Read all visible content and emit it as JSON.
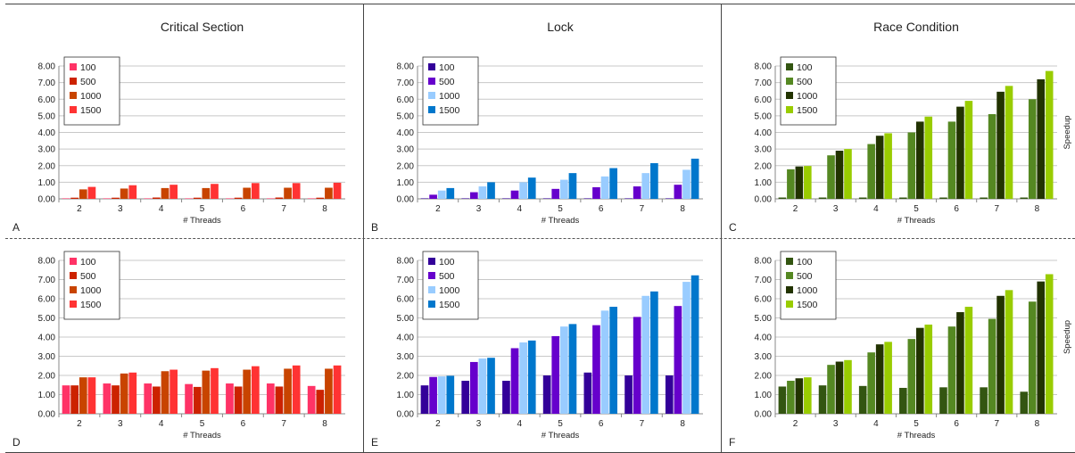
{
  "figure": {
    "columns": [
      "Critical Section",
      "Lock",
      "Race Condition"
    ],
    "series_names": [
      "100",
      "500",
      "1000",
      "1500"
    ],
    "ylabel": "Speedup",
    "xlabel": "# Threads",
    "categories": [
      "2",
      "3",
      "4",
      "5",
      "6",
      "7",
      "8"
    ],
    "ytick_labels": [
      "0.00",
      "1.00",
      "2.00",
      "3.00",
      "4.00",
      "5.00",
      "6.00",
      "7.00",
      "8.00"
    ],
    "palettes": {
      "critical": [
        "#ff3366",
        "#cc2200",
        "#c84400",
        "#ff3333"
      ],
      "lock": [
        "#330099",
        "#6600cc",
        "#99ccff",
        "#0077cc"
      ],
      "race": [
        "#335511",
        "#558822",
        "#223300",
        "#99cc00"
      ]
    }
  },
  "chart_data": [
    {
      "panel": "A",
      "type": "bar",
      "title": "Critical Section",
      "xlabel": "# Threads",
      "ylabel": "",
      "ylim": [
        0,
        8
      ],
      "categories": [
        "2",
        "3",
        "4",
        "5",
        "6",
        "7",
        "8"
      ],
      "legend": "top-left",
      "grid": true,
      "series": [
        {
          "name": "100",
          "values": [
            0.03,
            0.03,
            0.03,
            0.03,
            0.03,
            0.03,
            0.03
          ]
        },
        {
          "name": "500",
          "values": [
            0.07,
            0.07,
            0.08,
            0.07,
            0.07,
            0.08,
            0.07
          ]
        },
        {
          "name": "1000",
          "values": [
            0.57,
            0.62,
            0.65,
            0.65,
            0.67,
            0.67,
            0.67
          ]
        },
        {
          "name": "1500",
          "values": [
            0.72,
            0.82,
            0.85,
            0.9,
            0.95,
            0.95,
            0.97
          ]
        }
      ]
    },
    {
      "panel": "B",
      "type": "bar",
      "title": "Lock",
      "xlabel": "# Threads",
      "ylabel": "",
      "ylim": [
        0,
        8
      ],
      "categories": [
        "2",
        "3",
        "4",
        "5",
        "6",
        "7",
        "8"
      ],
      "legend": "top-left",
      "grid": true,
      "series": [
        {
          "name": "100",
          "values": [
            0.03,
            0.03,
            0.03,
            0.03,
            0.03,
            0.03,
            0.03
          ]
        },
        {
          "name": "500",
          "values": [
            0.25,
            0.4,
            0.5,
            0.6,
            0.7,
            0.75,
            0.85
          ]
        },
        {
          "name": "1000",
          "values": [
            0.5,
            0.75,
            1.0,
            1.15,
            1.35,
            1.55,
            1.75
          ]
        },
        {
          "name": "1500",
          "values": [
            0.65,
            1.0,
            1.28,
            1.55,
            1.85,
            2.15,
            2.42
          ]
        }
      ]
    },
    {
      "panel": "C",
      "type": "bar",
      "title": "Race Condition",
      "xlabel": "# Threads",
      "ylabel": "Speedup",
      "ylim": [
        0,
        8
      ],
      "categories": [
        "2",
        "3",
        "4",
        "5",
        "6",
        "7",
        "8"
      ],
      "legend": "top-left",
      "grid": true,
      "series": [
        {
          "name": "100",
          "values": [
            0.08,
            0.08,
            0.08,
            0.08,
            0.08,
            0.08,
            0.08
          ]
        },
        {
          "name": "500",
          "values": [
            1.78,
            2.62,
            3.3,
            4.0,
            4.65,
            5.1,
            6.0
          ]
        },
        {
          "name": "1000",
          "values": [
            1.95,
            2.9,
            3.8,
            4.65,
            5.55,
            6.45,
            7.2
          ]
        },
        {
          "name": "1500",
          "values": [
            1.98,
            3.0,
            3.95,
            4.95,
            5.9,
            6.8,
            7.7
          ]
        }
      ]
    },
    {
      "panel": "D",
      "type": "bar",
      "title": "",
      "xlabel": "# Threads",
      "ylabel": "",
      "ylim": [
        0,
        8
      ],
      "categories": [
        "2",
        "3",
        "4",
        "5",
        "6",
        "7",
        "8"
      ],
      "legend": "top-left",
      "grid": true,
      "series": [
        {
          "name": "100",
          "values": [
            1.48,
            1.58,
            1.58,
            1.55,
            1.58,
            1.58,
            1.45
          ]
        },
        {
          "name": "500",
          "values": [
            1.48,
            1.48,
            1.42,
            1.4,
            1.42,
            1.42,
            1.25
          ]
        },
        {
          "name": "1000",
          "values": [
            1.9,
            2.1,
            2.22,
            2.25,
            2.3,
            2.35,
            2.35
          ]
        },
        {
          "name": "1500",
          "values": [
            1.9,
            2.15,
            2.3,
            2.38,
            2.48,
            2.52,
            2.52
          ]
        }
      ]
    },
    {
      "panel": "E",
      "type": "bar",
      "title": "",
      "xlabel": "# Threads",
      "ylabel": "",
      "ylim": [
        0,
        8
      ],
      "categories": [
        "2",
        "3",
        "4",
        "5",
        "6",
        "7",
        "8"
      ],
      "legend": "top-left",
      "grid": true,
      "series": [
        {
          "name": "100",
          "values": [
            1.48,
            1.72,
            1.72,
            2.0,
            2.15,
            2.0,
            2.0
          ]
        },
        {
          "name": "500",
          "values": [
            1.92,
            2.7,
            3.42,
            4.05,
            4.62,
            5.05,
            5.62
          ]
        },
        {
          "name": "1000",
          "values": [
            1.95,
            2.88,
            3.72,
            4.55,
            5.38,
            6.15,
            6.88
          ]
        },
        {
          "name": "1500",
          "values": [
            1.98,
            2.92,
            3.82,
            4.68,
            5.58,
            6.38,
            7.22
          ]
        }
      ]
    },
    {
      "panel": "F",
      "type": "bar",
      "title": "",
      "xlabel": "# Threads",
      "ylabel": "Speedup",
      "ylim": [
        0,
        8
      ],
      "categories": [
        "2",
        "3",
        "4",
        "5",
        "6",
        "7",
        "8"
      ],
      "legend": "top-left",
      "grid": true,
      "series": [
        {
          "name": "100",
          "values": [
            1.42,
            1.48,
            1.45,
            1.35,
            1.38,
            1.38,
            1.15
          ]
        },
        {
          "name": "500",
          "values": [
            1.72,
            2.55,
            3.2,
            3.9,
            4.55,
            4.95,
            5.85
          ]
        },
        {
          "name": "1000",
          "values": [
            1.85,
            2.72,
            3.62,
            4.48,
            5.3,
            6.15,
            6.9
          ]
        },
        {
          "name": "1500",
          "values": [
            1.9,
            2.8,
            3.75,
            4.65,
            5.58,
            6.45,
            7.28
          ]
        }
      ]
    }
  ]
}
